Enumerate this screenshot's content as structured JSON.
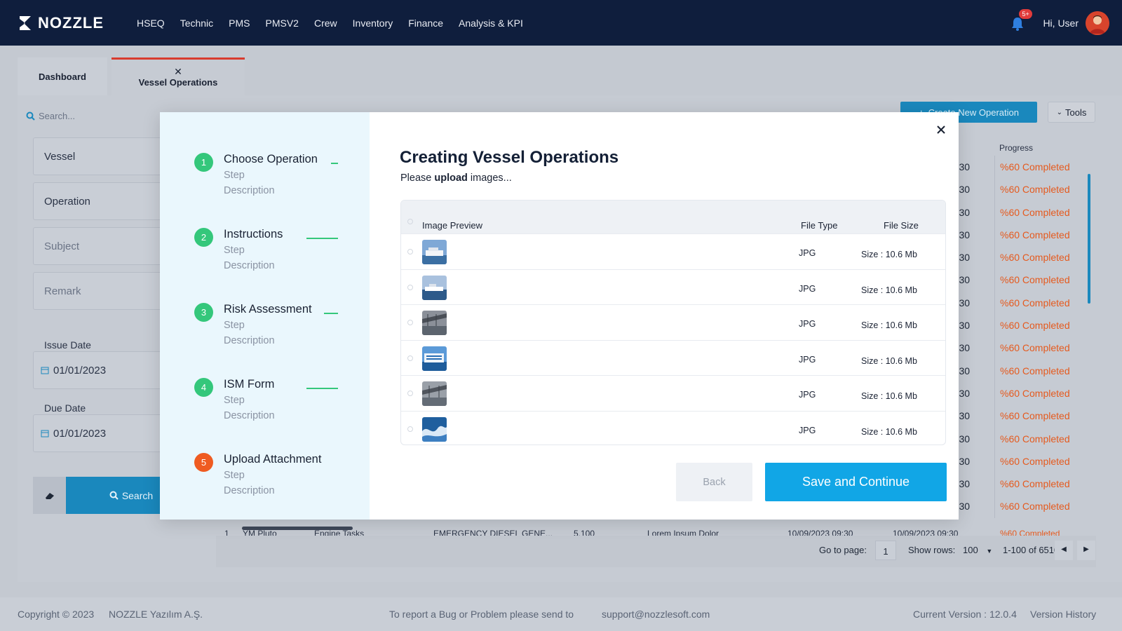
{
  "brand": {
    "name": "NOZZLE"
  },
  "nav": {
    "items": [
      "HSEQ",
      "Technic",
      "PMS",
      "PMSV2",
      "Crew",
      "Inventory",
      "Finance",
      "Analysis & KPI"
    ],
    "notification_count": "5+",
    "greeting": "Hi, User"
  },
  "tabs": {
    "dashboard": "Dashboard",
    "vessel_operations": "Vessel Operations"
  },
  "filters": {
    "search_placeholder": "Search...",
    "vessel": "Vessel",
    "operation": "Operation",
    "subject": "Subject",
    "remark": "Remark",
    "issue_date_label": "Issue Date",
    "issue_date": "01/01/2023",
    "due_date_label": "Due Date",
    "due_date": "01/01/2023",
    "search_button": "Search"
  },
  "toolbar": {
    "create_button": "Create New Operation",
    "tools_button": "Tools"
  },
  "table": {
    "progress_header": "Progress",
    "rows": [
      {
        "time": "09:30",
        "progress": "%60 Completed"
      },
      {
        "time": "09:30",
        "progress": "%60 Completed"
      },
      {
        "time": "09:30",
        "progress": "%60 Completed"
      },
      {
        "time": "09:30",
        "progress": "%60 Completed"
      },
      {
        "time": "09:30",
        "progress": "%60 Completed"
      },
      {
        "time": "09:30",
        "progress": "%60 Completed"
      },
      {
        "time": "09:30",
        "progress": "%60 Completed"
      },
      {
        "time": "09:30",
        "progress": "%60 Completed"
      },
      {
        "time": "09:30",
        "progress": "%60 Completed"
      },
      {
        "time": "09:30",
        "progress": "%60 Completed"
      },
      {
        "time": "09:30",
        "progress": "%60 Completed"
      },
      {
        "time": "09:30",
        "progress": "%60 Completed"
      },
      {
        "time": "09:30",
        "progress": "%60 Completed"
      },
      {
        "time": "09:30",
        "progress": "%60 Completed"
      },
      {
        "time": "09:30",
        "progress": "%60 Completed"
      },
      {
        "time": "09:30",
        "progress": "%60 Completed"
      }
    ],
    "bottom_row_fragment": [
      "1",
      "YM Pluto",
      "Engine Tasks",
      "EMERGENCY DIESEL GENE...",
      "5.100",
      "Lorem Ipsum Dolor",
      "10/09/2023 09:30",
      "10/09/2023 09:30",
      "%60 Completed"
    ]
  },
  "pager": {
    "goto_label": "Go to page:",
    "page": "1",
    "show_rows_label": "Show rows:",
    "rows": "100",
    "range": "1-100 of 6510"
  },
  "footer": {
    "copyright": "Copyright © 2023",
    "company": "NOZZLE Yazılım A.Ş.",
    "report_text": "To report a Bug or Problem please send to",
    "email": "support@nozzlesoft.com",
    "version": "Current Version : 12.0.4",
    "history": "Version History"
  },
  "modal": {
    "title": "Creating Vessel Operations",
    "subtitle_prefix": "Please ",
    "subtitle_bold": "upload",
    "subtitle_suffix": " images...",
    "steps": [
      {
        "num": "1",
        "title": "Choose Operation",
        "sub": "Step",
        "desc": "Description"
      },
      {
        "num": "2",
        "title": "Instructions",
        "sub": "Step",
        "desc": "Description"
      },
      {
        "num": "3",
        "title": "Risk Assessment",
        "sub": "Step",
        "desc": "Description"
      },
      {
        "num": "4",
        "title": "ISM Form",
        "sub": "Step",
        "desc": "Description"
      },
      {
        "num": "5",
        "title": "Upload Attachment",
        "sub": "Step",
        "desc": "Description"
      }
    ],
    "table_headers": {
      "preview": "Image Preview",
      "type": "File Type",
      "size": "File Size"
    },
    "files": [
      {
        "type": "JPG",
        "size": "Size : 10.6 Mb"
      },
      {
        "type": "JPG",
        "size": "Size : 10.6 Mb"
      },
      {
        "type": "JPG",
        "size": "Size : 10.6 Mb"
      },
      {
        "type": "JPG",
        "size": "Size : 10.6 Mb"
      },
      {
        "type": "JPG",
        "size": "Size : 10.6 Mb"
      },
      {
        "type": "JPG",
        "size": "Size : 10.6 Mb"
      }
    ],
    "back_button": "Back",
    "save_button": "Save and Continue"
  },
  "colors": {
    "nav_bg": "#0f1e3d",
    "accent": "#11a6e6",
    "success": "#34c77b",
    "active_step": "#ef5b21",
    "progress_text": "#e55a1e"
  }
}
